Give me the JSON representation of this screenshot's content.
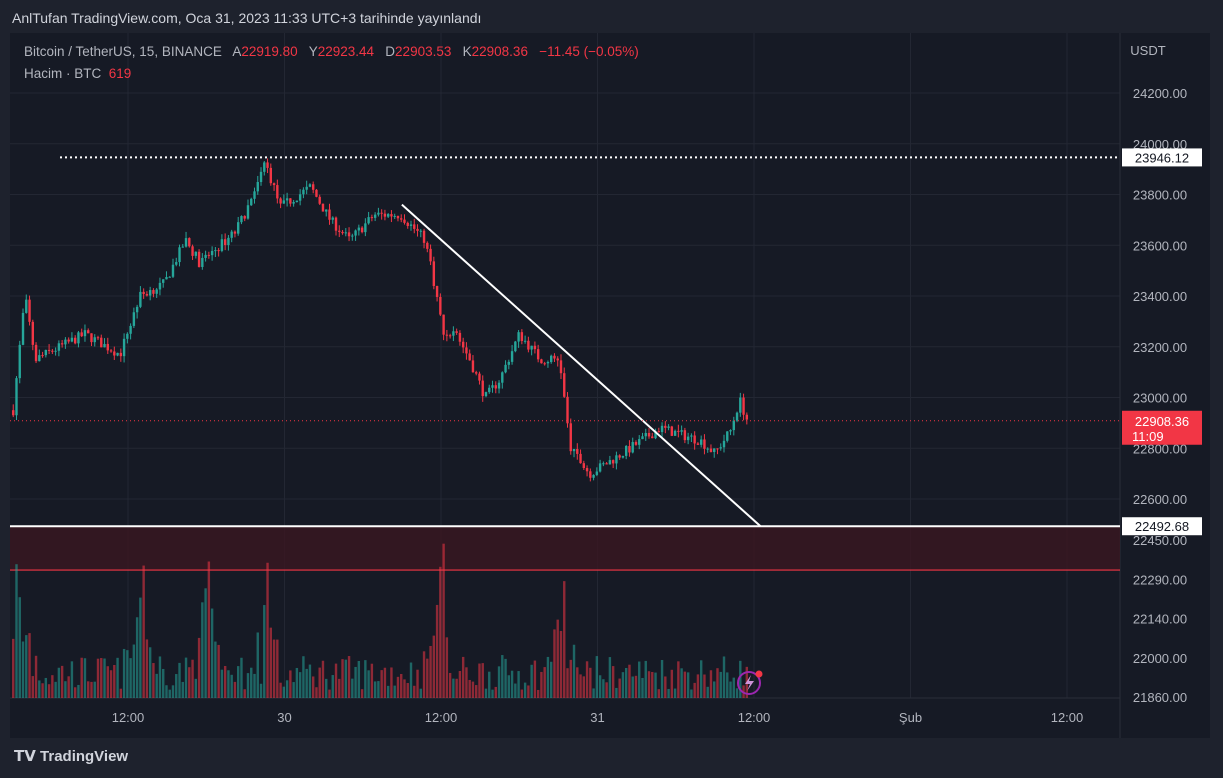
{
  "header": "AnlTufan TradingView.com, Oca 31, 2023 11:33 UTC+3 tarihinde yayınlandı",
  "legend": {
    "symbol": "Bitcoin / TetherUS, 15, BINANCE",
    "open_l": "A",
    "open": "22919.80",
    "high_l": "Y",
    "high": "22923.44",
    "low_l": "D",
    "low": "22903.53",
    "close_l": "K",
    "close": "22908.36",
    "change": "−11.45 (−0.05%)",
    "volume_label": "Hacim · BTC",
    "volume": "619"
  },
  "brand": "TradingView",
  "currency": "USDT",
  "chart_data": {
    "type": "candlestick",
    "interval_minutes": 15,
    "x_unit": "hours from Jan 29 12:00",
    "keypoints": [
      [
        -8.8,
        22950
      ],
      [
        -7.9,
        23400
      ],
      [
        -7.1,
        23150
      ],
      [
        -5.2,
        23200
      ],
      [
        -3.3,
        23250
      ],
      [
        -0.6,
        23170
      ],
      [
        0.9,
        23400
      ],
      [
        2.8,
        23450
      ],
      [
        4.4,
        23620
      ],
      [
        5.5,
        23530
      ],
      [
        8.2,
        23650
      ],
      [
        9.7,
        23800
      ],
      [
        10.5,
        23930
      ],
      [
        11.7,
        23750
      ],
      [
        14,
        23830
      ],
      [
        15.5,
        23700
      ],
      [
        17,
        23620
      ],
      [
        18.9,
        23720
      ],
      [
        20.9,
        23720
      ],
      [
        22.8,
        23620
      ],
      [
        23.3,
        23500
      ],
      [
        24.2,
        23250
      ],
      [
        25.1,
        23260
      ],
      [
        26.2,
        23150
      ],
      [
        27.4,
        23000
      ],
      [
        28.5,
        23070
      ],
      [
        30,
        23250
      ],
      [
        31.6,
        23150
      ],
      [
        33.1,
        23150
      ],
      [
        33.9,
        22800
      ],
      [
        35.4,
        22700
      ],
      [
        37,
        22750
      ],
      [
        38.5,
        22800
      ],
      [
        40.8,
        22880
      ],
      [
        43.9,
        22830
      ],
      [
        45,
        22780
      ],
      [
        46.2,
        22870
      ],
      [
        46.9,
        22990
      ],
      [
        47.5,
        22908.36
      ]
    ],
    "volume_spikes_hours": [
      -8.5,
      1,
      6,
      10.5,
      24,
      33.5
    ],
    "price_ticks": [
      24200,
      24000,
      23800,
      23600,
      23400,
      23200,
      23000,
      22800,
      22600
    ],
    "volume_ticks": [
      "22450.00",
      "22290.00",
      "22140.00",
      "22000.00",
      "21860.00"
    ],
    "x_ticks": [
      {
        "h": 0,
        "label": "12:00"
      },
      {
        "h": 12,
        "label": "30"
      },
      {
        "h": 24,
        "label": "12:00"
      },
      {
        "h": 36,
        "label": "31"
      },
      {
        "h": 48,
        "label": "12:00"
      },
      {
        "h": 60,
        "label": "Şub"
      },
      {
        "h": 72,
        "label": "12:00"
      }
    ],
    "resistance": "23946.12",
    "support": "22492.68",
    "zone_low": 22320,
    "trendline": [
      [
        21,
        23760
      ],
      [
        48.5,
        22492.68
      ]
    ],
    "last_price": "22908.36",
    "countdown": "11:09",
    "colors": {
      "up": "#26a69a",
      "down": "#f23645"
    }
  }
}
